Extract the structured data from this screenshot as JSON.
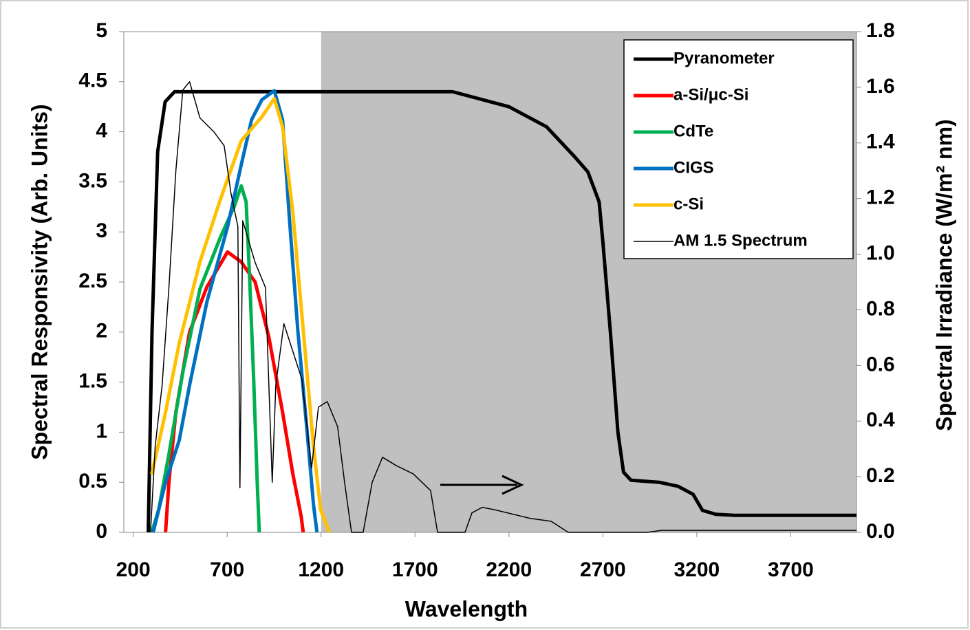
{
  "chart_data": {
    "type": "line",
    "xlabel": "Wavelength",
    "ylabel": "Spectral Responsivity (Arb.  Units)",
    "y2label": "Spectral Irradiance (W/m² nm)",
    "xlim": [
      150,
      4050
    ],
    "xticks": [
      200,
      700,
      1200,
      1700,
      2200,
      2700,
      3200,
      3700
    ],
    "ylim": [
      0,
      5
    ],
    "yticks": [
      0,
      0.5,
      1,
      1.5,
      2,
      2.5,
      3,
      3.5,
      4,
      4.5,
      5
    ],
    "y2lim": [
      0,
      1.8
    ],
    "y2ticks": [
      {
        "value": 0,
        "label": "0.0"
      },
      0.2,
      0.4,
      0.6,
      0.8,
      {
        "value": 1,
        "label": "1.0"
      },
      1.2,
      1.4,
      1.6,
      1.8
    ],
    "shaded_from": 1200,
    "shade_color": "#c0c0c0",
    "legend": "upper right",
    "series": [
      {
        "name": "Pyranometer",
        "color": "#000000",
        "width": 5,
        "x": [
          280,
          300,
          330,
          370,
          420,
          1900,
          2000,
          2200,
          2400,
          2550,
          2620,
          2680,
          2700,
          2740,
          2780,
          2810,
          2850,
          3000,
          3100,
          3180,
          3230,
          3300,
          3400,
          4050
        ],
        "values": [
          0,
          2,
          3.8,
          4.3,
          4.4,
          4.4,
          4.35,
          4.25,
          4.05,
          3.75,
          3.6,
          3.3,
          2.9,
          2.0,
          1.0,
          0.6,
          0.52,
          0.5,
          0.46,
          0.38,
          0.22,
          0.18,
          0.17,
          0.17
        ]
      },
      {
        "name": "a-Si/μc-Si",
        "color": "#ff0000",
        "width": 5,
        "x": [
          372,
          390,
          427,
          500,
          592,
          702,
          775,
          849,
          922,
          995,
          1050,
          1094,
          1105
        ],
        "values": [
          0,
          0.5,
          1.2,
          2.0,
          2.45,
          2.8,
          2.7,
          2.5,
          1.95,
          1.2,
          0.58,
          0.16,
          0
        ]
      },
      {
        "name": "CdTe",
        "color": "#00b050",
        "width": 5,
        "x": [
          299,
          336,
          390,
          464,
          555,
          665,
          739,
          775,
          801,
          819,
          841,
          860,
          871
        ],
        "values": [
          0,
          0.23,
          0.78,
          1.6,
          2.43,
          2.95,
          3.26,
          3.46,
          3.3,
          2.57,
          1.54,
          0.5,
          0
        ]
      },
      {
        "name": "CIGS",
        "color": "#0070c0",
        "width": 5,
        "x": [
          306,
          372,
          445,
          500,
          592,
          702,
          775,
          830,
          885,
          951,
          995,
          1032,
          1076,
          1123,
          1160,
          1178
        ],
        "values": [
          0,
          0.5,
          0.92,
          1.47,
          2.3,
          3.05,
          3.67,
          4.12,
          4.32,
          4.41,
          4.12,
          3.12,
          2.02,
          1.06,
          0.27,
          0
        ]
      },
      {
        "name": "c-Si",
        "color": "#ffc000",
        "width": 5,
        "x": [
          299,
          372,
          445,
          555,
          665,
          775,
          885,
          951,
          995,
          1050,
          1105,
          1160,
          1197,
          1244
        ],
        "values": [
          0.58,
          1.2,
          1.89,
          2.7,
          3.33,
          3.91,
          4.15,
          4.33,
          4.05,
          3.19,
          2.02,
          0.85,
          0.23,
          0
        ]
      },
      {
        "name": "AM 1.5 Spectrum",
        "color": "#000000",
        "width": 1.5,
        "axis": "y2",
        "x": [
          292,
          317,
          354,
          390,
          427,
          464,
          500,
          555,
          629,
          684,
          720,
          757,
          768,
          783,
          849,
          904,
          940,
          959,
          1002,
          1050,
          1098,
          1149,
          1186,
          1233,
          1288,
          1325,
          1362,
          1424,
          1472,
          1527,
          1600,
          1691,
          1783,
          1820,
          1966,
          2003,
          2058,
          2131,
          2314,
          2424,
          2516,
          2937,
          3011,
          3524,
          4050
        ],
        "values": [
          0,
          0.31,
          0.53,
          0.88,
          1.3,
          1.59,
          1.62,
          1.49,
          1.44,
          1.39,
          1.22,
          1.1,
          0.16,
          1.12,
          0.97,
          0.88,
          0.18,
          0.53,
          0.75,
          0.65,
          0.55,
          0.23,
          0.45,
          0.47,
          0.38,
          0.18,
          0,
          0,
          0.18,
          0.27,
          0.24,
          0.21,
          0.15,
          0,
          0,
          0.07,
          0.09,
          0.08,
          0.05,
          0.04,
          0,
          0,
          0.007,
          0.007,
          0.007
        ]
      }
    ]
  }
}
